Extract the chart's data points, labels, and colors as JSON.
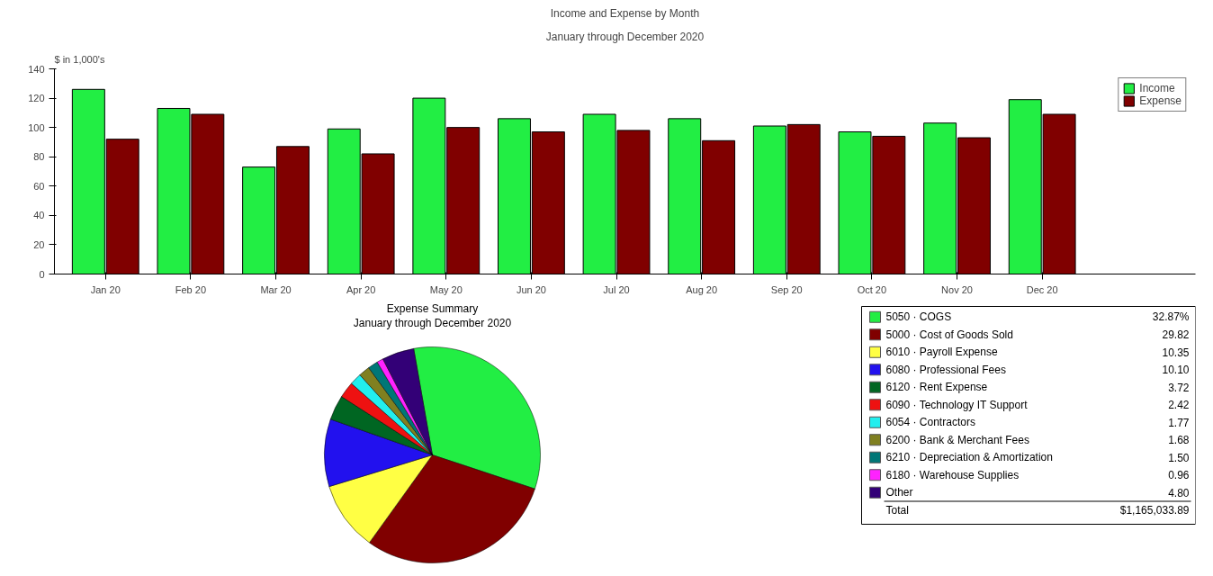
{
  "chart_data": [
    {
      "type": "bar",
      "title": "Income and Expense by Month",
      "subtitle": "January through December 2020",
      "ylabel": "$ in 1,000's",
      "categories": [
        "Jan 20",
        "Feb 20",
        "Mar 20",
        "Apr 20",
        "May 20",
        "Jun 20",
        "Jul 20",
        "Aug 20",
        "Sep 20",
        "Oct 20",
        "Nov 20",
        "Dec 20"
      ],
      "series": [
        {
          "name": "Income",
          "color": "#22ee44",
          "values": [
            126,
            113,
            73,
            99,
            120,
            106,
            109,
            106,
            101,
            97,
            103,
            119
          ]
        },
        {
          "name": "Expense",
          "color": "#800000",
          "values": [
            92,
            109,
            87,
            82,
            100,
            97,
            98,
            91,
            102,
            94,
            93,
            109
          ]
        }
      ],
      "ylim": [
        0,
        140
      ],
      "yticks": [
        0,
        20,
        40,
        60,
        80,
        100,
        120,
        140
      ],
      "grid": false,
      "legend": "top right"
    },
    {
      "type": "pie",
      "title": "Expense Summary",
      "subtitle": "January through December 2020",
      "categories": [
        "5050 · COGS",
        "5000 · Cost of Goods Sold",
        "6010 · Payroll Expense",
        "6080 · Professional Fees",
        "6120 · Rent Expense",
        "6090 · Technology IT Support",
        "6054 · Contractors",
        "6200 · Bank & Merchant Fees",
        "6210 · Depreciation & Amortization",
        "6180 · Warehouse Supplies",
        "Other"
      ],
      "values": [
        32.87,
        29.82,
        10.35,
        10.1,
        3.72,
        2.42,
        1.77,
        1.68,
        1.5,
        0.96,
        4.8
      ],
      "colors": [
        "#22ee44",
        "#800000",
        "#ffff44",
        "#2211ee",
        "#006622",
        "#ee1111",
        "#22eeee",
        "#808020",
        "#007777",
        "#ff22ff",
        "#330077"
      ],
      "value_labels": [
        "32.87%",
        "29.82",
        "10.35",
        "10.10",
        "3.72",
        "2.42",
        "1.77",
        "1.68",
        "1.50",
        "0.96",
        "4.80"
      ],
      "legend": "right",
      "annotations": [
        "Total",
        "$1,165,033.89"
      ]
    }
  ]
}
